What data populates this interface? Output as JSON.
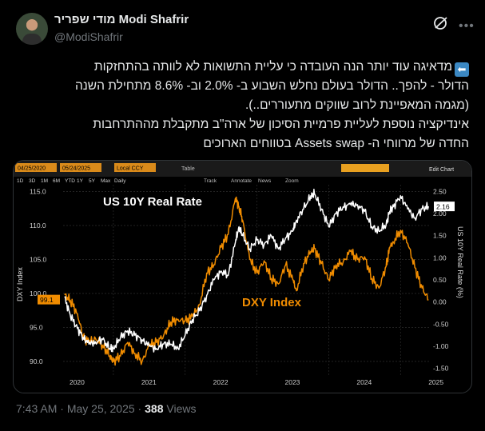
{
  "author": {
    "display_name": "מודי שפריר Modi Shafrir",
    "handle": "@ModiShafrir"
  },
  "icons": {
    "grok": "grok-icon",
    "more": "more-icon",
    "back_emoji": "back-arrow-emoji"
  },
  "tweet": {
    "lines": [
      "מדאיגה עוד יותר הנה העובדה כי עליית התשואות לא לוותה בהתחזקות",
      "הדולר - להפך.. הדולר בעולם נחלש השבוע ב- 2.0% וב- 8.6% מתחילת השנה",
      "(מגמה המאפיינת לרוב שווקים מתעוררים..).",
      "אינדיקציה נוספת לעליית פרמיית הסיכון של ארה\"ב מתקבלת מההתרחבות",
      "החדה של מרווחי ה- Assets swap בטווחים הארוכים"
    ],
    "time": "7:43 AM",
    "date": "May 25, 2025",
    "views_count": "388",
    "views_label": "Views"
  },
  "terminal": {
    "top_fields": [
      "04/25/2020",
      "05/24/2025",
      "Local CCY"
    ],
    "period_buttons": [
      "1D",
      "3D",
      "1M",
      "6M",
      "YTD",
      "1Y",
      "5Y",
      "Max",
      "Daily"
    ],
    "tools": [
      "Track",
      "Annotate",
      "News",
      "Zoom"
    ],
    "table_label": "Table",
    "edit_chart": "Edit Chart",
    "current_labels": {
      "dxy": "99.1",
      "real_rate": "2.16"
    }
  },
  "chart_data": {
    "type": "line",
    "x_ticks": [
      "2020",
      "2021",
      "2022",
      "2023",
      "2024",
      "2025"
    ],
    "left_axis": {
      "label": "DXY Index",
      "ticks": [
        "115.0",
        "110.0",
        "105.0",
        "100.0",
        "95.0",
        "90.0"
      ],
      "range": [
        88.0,
        116.0
      ]
    },
    "right_axis": {
      "label": "US 10Y Real Rate (%)",
      "ticks": [
        "2.50",
        "2.00",
        "1.50",
        "1.00",
        "0.50",
        "0.00",
        "-0.50",
        "-1.00",
        "-1.50"
      ],
      "range": [
        -1.65,
        2.65
      ]
    },
    "annotations": {
      "real_rate": "US 10Y Real Rate",
      "dxy": "DXY Index"
    },
    "series": [
      {
        "name": "DXY Index",
        "axis": "left",
        "color": "#f08c00",
        "x": [
          2020.32,
          2020.4,
          2020.5,
          2020.58,
          2020.66,
          2020.75,
          2020.85,
          2020.95,
          2021.0,
          2021.1,
          2021.2,
          2021.3,
          2021.4,
          2021.5,
          2021.6,
          2021.7,
          2021.8,
          2021.9,
          2022.0,
          2022.1,
          2022.2,
          2022.3,
          2022.4,
          2022.5,
          2022.6,
          2022.7,
          2022.75,
          2022.8,
          2022.9,
          2023.0,
          2023.1,
          2023.2,
          2023.3,
          2023.4,
          2023.5,
          2023.55,
          2023.65,
          2023.75,
          2023.8,
          2023.9,
          2024.0,
          2024.1,
          2024.2,
          2024.3,
          2024.4,
          2024.5,
          2024.6,
          2024.7,
          2024.8,
          2024.85,
          2024.9,
          2025.0,
          2025.1,
          2025.2,
          2025.3,
          2025.39
        ],
        "y": [
          99.8,
          99.0,
          97.0,
          93.5,
          92.8,
          93.4,
          92.4,
          90.8,
          90.0,
          90.8,
          92.8,
          91.2,
          90.0,
          92.3,
          92.8,
          93.8,
          95.8,
          96.2,
          95.9,
          96.6,
          98.3,
          103.0,
          104.2,
          106.8,
          108.7,
          114.0,
          112.8,
          110.8,
          105.0,
          103.0,
          104.8,
          102.2,
          101.4,
          104.2,
          102.0,
          100.4,
          104.4,
          106.2,
          106.6,
          104.4,
          102.0,
          104.2,
          104.6,
          106.2,
          105.0,
          105.4,
          102.2,
          100.8,
          104.0,
          106.7,
          107.6,
          109.3,
          107.4,
          103.8,
          100.8,
          99.1
        ]
      },
      {
        "name": "US 10Y Real Rate",
        "axis": "right",
        "color": "#ffffff",
        "x": [
          2020.32,
          2020.4,
          2020.5,
          2020.58,
          2020.66,
          2020.75,
          2020.85,
          2020.95,
          2021.0,
          2021.1,
          2021.2,
          2021.3,
          2021.4,
          2021.5,
          2021.6,
          2021.7,
          2021.8,
          2021.9,
          2022.0,
          2022.1,
          2022.2,
          2022.3,
          2022.4,
          2022.5,
          2022.6,
          2022.7,
          2022.75,
          2022.8,
          2022.9,
          2023.0,
          2023.1,
          2023.2,
          2023.3,
          2023.4,
          2023.5,
          2023.55,
          2023.65,
          2023.75,
          2023.8,
          2023.9,
          2024.0,
          2024.1,
          2024.2,
          2024.3,
          2024.4,
          2024.5,
          2024.6,
          2024.7,
          2024.8,
          2024.85,
          2024.9,
          2025.0,
          2025.1,
          2025.2,
          2025.3,
          2025.39
        ],
        "y": [
          0.1,
          -0.3,
          -0.6,
          -0.8,
          -0.95,
          -0.9,
          -0.85,
          -1.05,
          -1.05,
          -0.8,
          -0.65,
          -0.75,
          -0.85,
          -1.0,
          -1.05,
          -0.95,
          -0.95,
          -1.05,
          -0.75,
          -0.4,
          -0.2,
          0.15,
          0.5,
          0.7,
          0.6,
          1.35,
          1.7,
          1.5,
          1.2,
          1.4,
          1.3,
          1.5,
          1.2,
          1.45,
          1.6,
          1.85,
          2.1,
          2.4,
          2.45,
          2.1,
          1.7,
          2.0,
          2.15,
          2.2,
          2.2,
          2.05,
          1.7,
          1.6,
          1.75,
          2.05,
          2.15,
          2.4,
          2.1,
          1.9,
          2.1,
          2.16
        ]
      }
    ]
  }
}
